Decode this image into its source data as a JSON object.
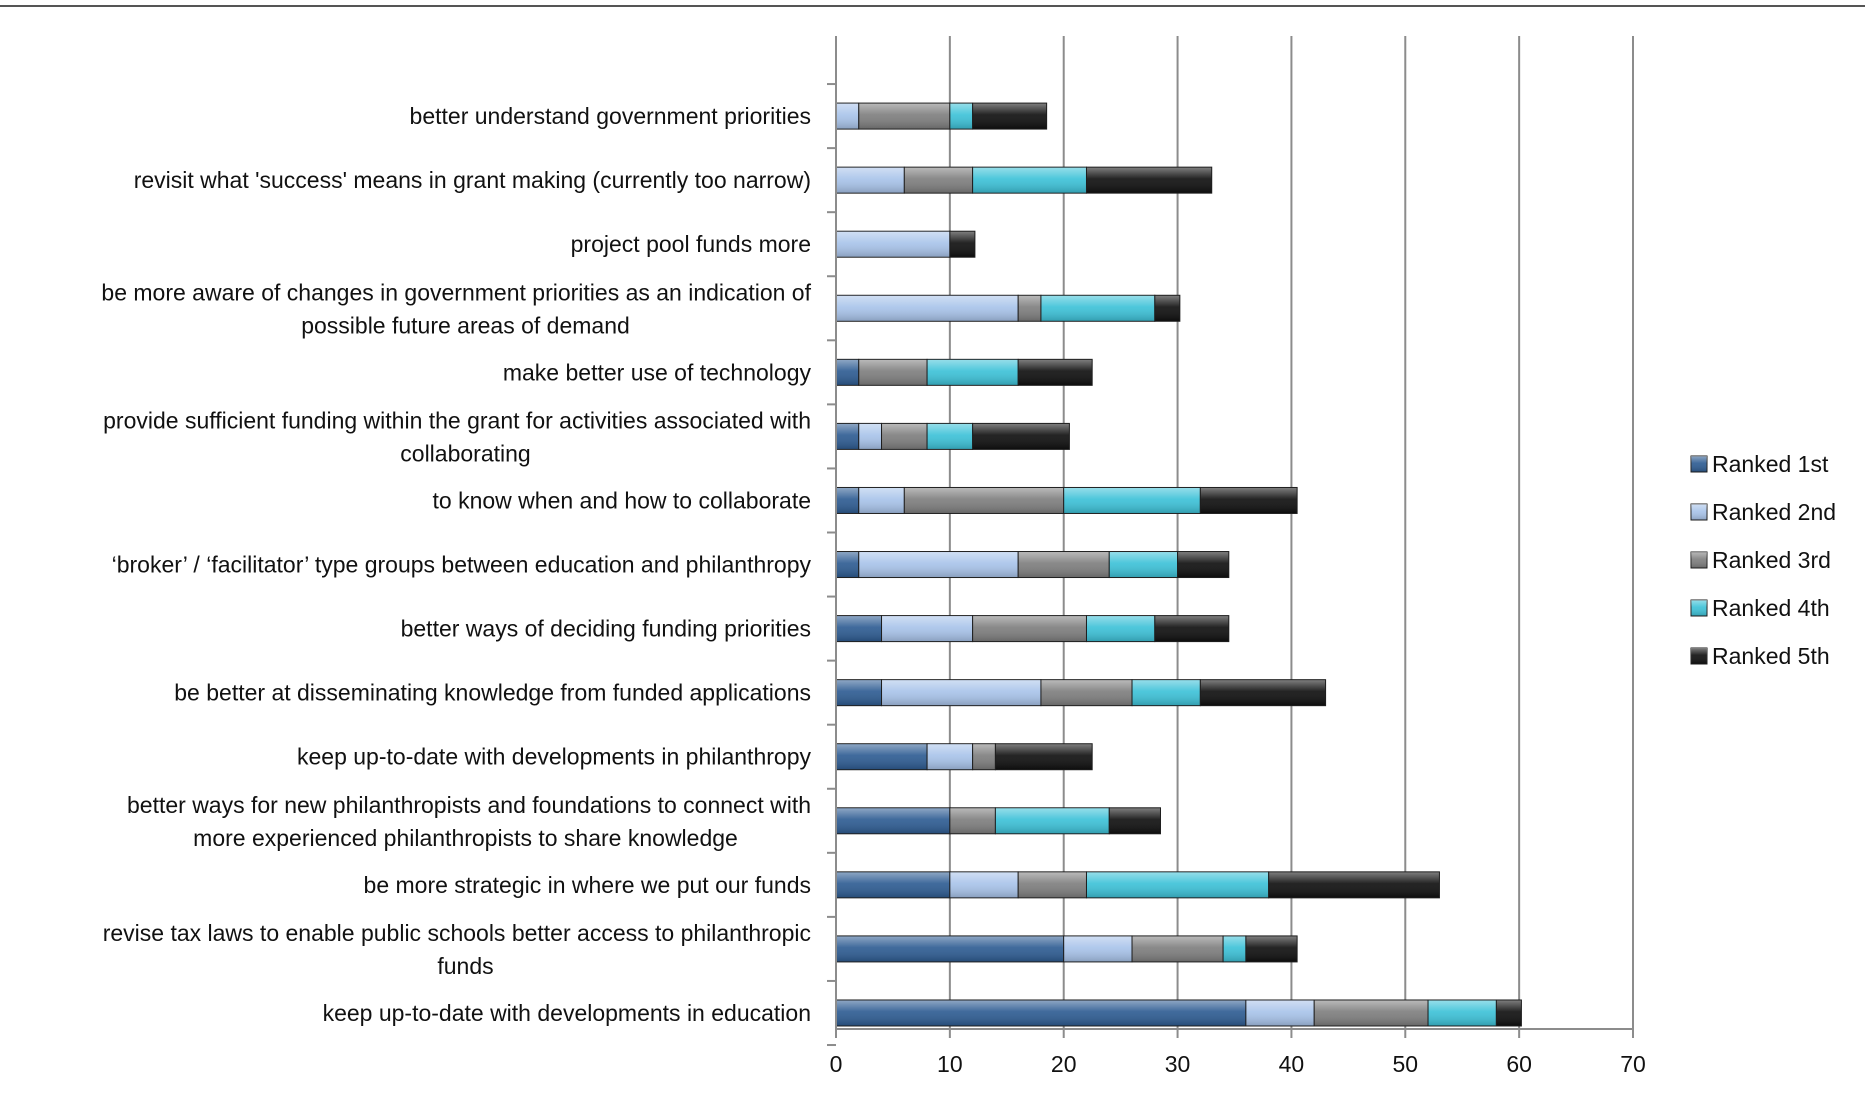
{
  "chart_data": {
    "type": "bar",
    "orientation": "horizontal",
    "stacked": true,
    "title": "",
    "xlabel": "",
    "ylabel": "",
    "xlim": [
      0,
      70
    ],
    "x_ticks": [
      0,
      10,
      20,
      30,
      40,
      50,
      60,
      70
    ],
    "grid": "vertical",
    "legend_position": "right",
    "categories": [
      "better understand government priorities",
      "revisit what 'success' means in grant making (currently too narrow)",
      "project pool funds more",
      "be more aware of changes in government priorities as an indication of possible future areas of demand",
      "make better use of technology",
      "provide sufficient funding within the grant for activities associated with collaborating",
      "to know when and how to collaborate",
      "‘broker’ / ‘facilitator’ type groups between education and philanthropy",
      "better ways of deciding funding priorities",
      "be better at disseminating knowledge from funded applications",
      "keep up-to-date with developments in philanthropy",
      "better ways for new philanthropists and foundations to connect with more experienced philanthropists to share knowledge",
      "be more strategic in where we put our funds",
      "revise tax laws to enable public schools better access to philanthropic funds",
      "keep up-to-date with developments in education"
    ],
    "category_lines": [
      [
        "better understand government priorities"
      ],
      [
        "revisit what 'success' means in grant making (currently too narrow)"
      ],
      [
        "project pool funds more"
      ],
      [
        "be more aware of changes in government priorities as an indication of",
        "possible future areas of demand"
      ],
      [
        "make better use of technology"
      ],
      [
        "provide sufficient funding within the grant for activities associated with",
        "collaborating"
      ],
      [
        "to know when and how to collaborate"
      ],
      [
        "‘broker’ / ‘facilitator’ type groups between education and philanthropy"
      ],
      [
        "better ways of deciding funding priorities"
      ],
      [
        "be better at disseminating knowledge from funded applications"
      ],
      [
        "keep up-to-date with developments in philanthropy"
      ],
      [
        "better ways for new philanthropists and foundations to connect with",
        "more experienced philanthropists to share knowledge"
      ],
      [
        "be more strategic in where we put our funds"
      ],
      [
        "revise tax laws to enable public schools better access to philanthropic",
        "funds"
      ],
      [
        "keep up-to-date with developments in education"
      ]
    ],
    "series": [
      {
        "name": "Ranked 1st",
        "color": "#2f5d93",
        "values": [
          0,
          0,
          0,
          0,
          2,
          2,
          2,
          2,
          4,
          4,
          8,
          10,
          10,
          20,
          36
        ]
      },
      {
        "name": "Ranked 2nd",
        "color": "#a9c4ea",
        "values": [
          2,
          6,
          10,
          16,
          0,
          2,
          4,
          14,
          8,
          14,
          4,
          0,
          6,
          6,
          6
        ]
      },
      {
        "name": "Ranked 3rd",
        "color": "#7f7f7f",
        "values": [
          8,
          6,
          0,
          2,
          6,
          4,
          14,
          8,
          10,
          8,
          2,
          4,
          6,
          8,
          10
        ]
      },
      {
        "name": "Ranked 4th",
        "color": "#3ec2d8",
        "values": [
          2,
          10,
          0,
          10,
          8,
          4,
          12,
          6,
          6,
          6,
          0,
          10,
          16,
          2,
          6
        ]
      },
      {
        "name": "Ranked 5th",
        "color": "#111111",
        "values": [
          6.5,
          11,
          2.2,
          2.2,
          6.5,
          8.5,
          8.5,
          4.5,
          6.5,
          11,
          8.5,
          4.5,
          15,
          4.5,
          2.2
        ]
      }
    ]
  }
}
